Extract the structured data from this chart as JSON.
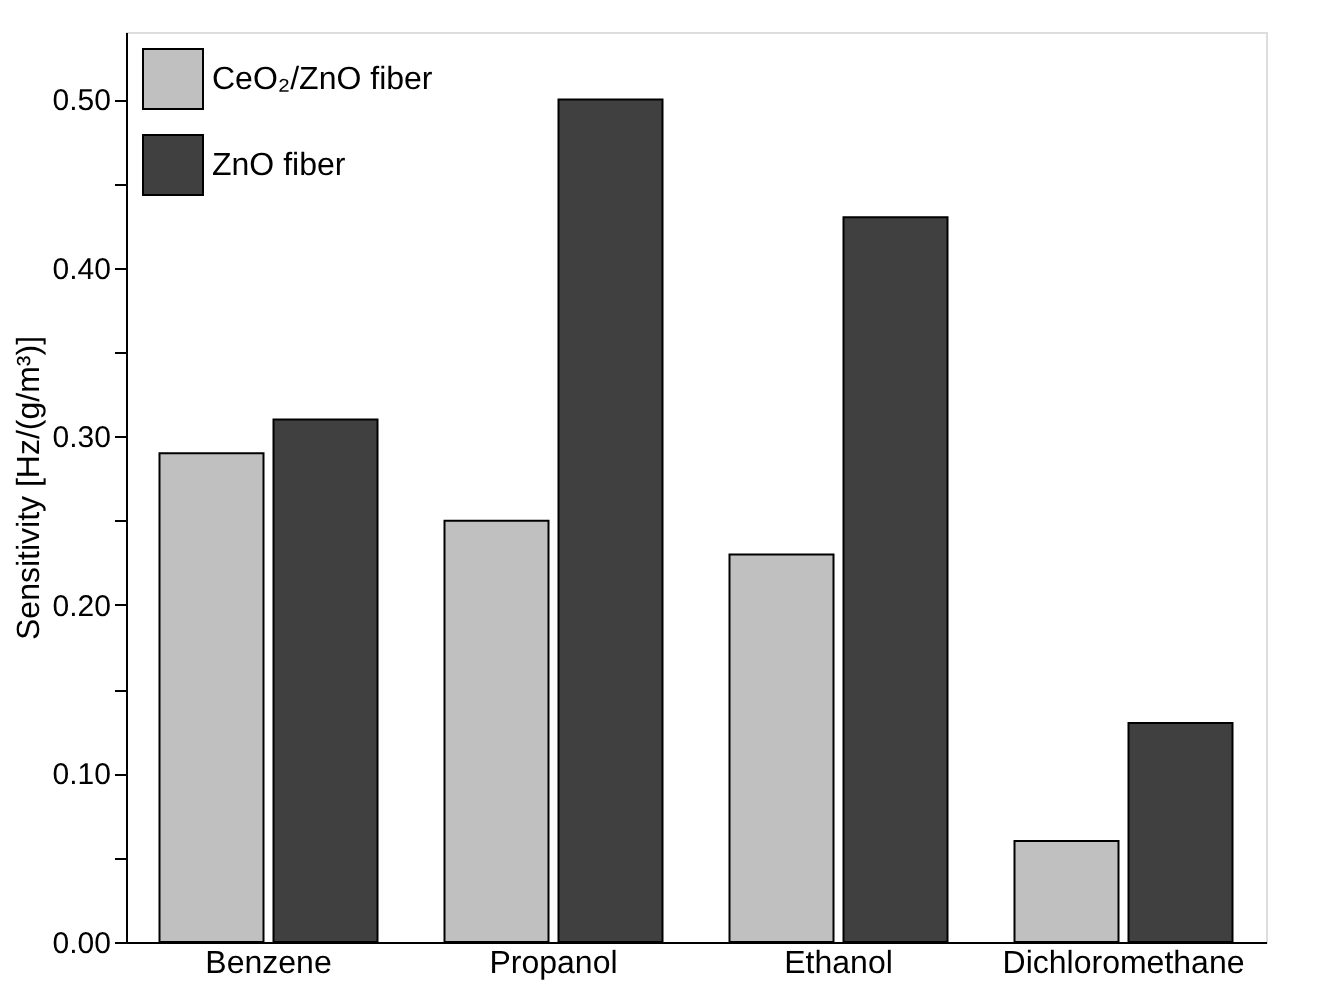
{
  "chart_data": {
    "type": "bar",
    "ylabel": "Sensitivity [Hz/(g/m³)]",
    "categories": [
      "Benzene",
      "Propanol",
      "Ethanol",
      "Dichloromethane"
    ],
    "series": [
      {
        "name": "CeO₂/ZnO fiber",
        "color": "#c0c0c0",
        "values": [
          0.29,
          0.25,
          0.23,
          0.06
        ]
      },
      {
        "name": "ZnO fiber",
        "color": "#404040",
        "values": [
          0.31,
          0.5,
          0.43,
          0.13
        ]
      }
    ],
    "ylim": [
      0,
      0.54
    ],
    "yticks": [
      {
        "value": 0,
        "label": "0.00"
      },
      {
        "value": 0.05,
        "label": null
      },
      {
        "value": 0.1,
        "label": "0.10"
      },
      {
        "value": 0.15,
        "label": null
      },
      {
        "value": 0.2,
        "label": "0.20"
      },
      {
        "value": 0.25,
        "label": null
      },
      {
        "value": 0.3,
        "label": "0.30"
      },
      {
        "value": 0.35,
        "label": null
      },
      {
        "value": 0.4,
        "label": "0.40"
      },
      {
        "value": 0.45,
        "label": null
      },
      {
        "value": 0.5,
        "label": "0.50"
      }
    ],
    "grid": false,
    "legend": "top left"
  }
}
